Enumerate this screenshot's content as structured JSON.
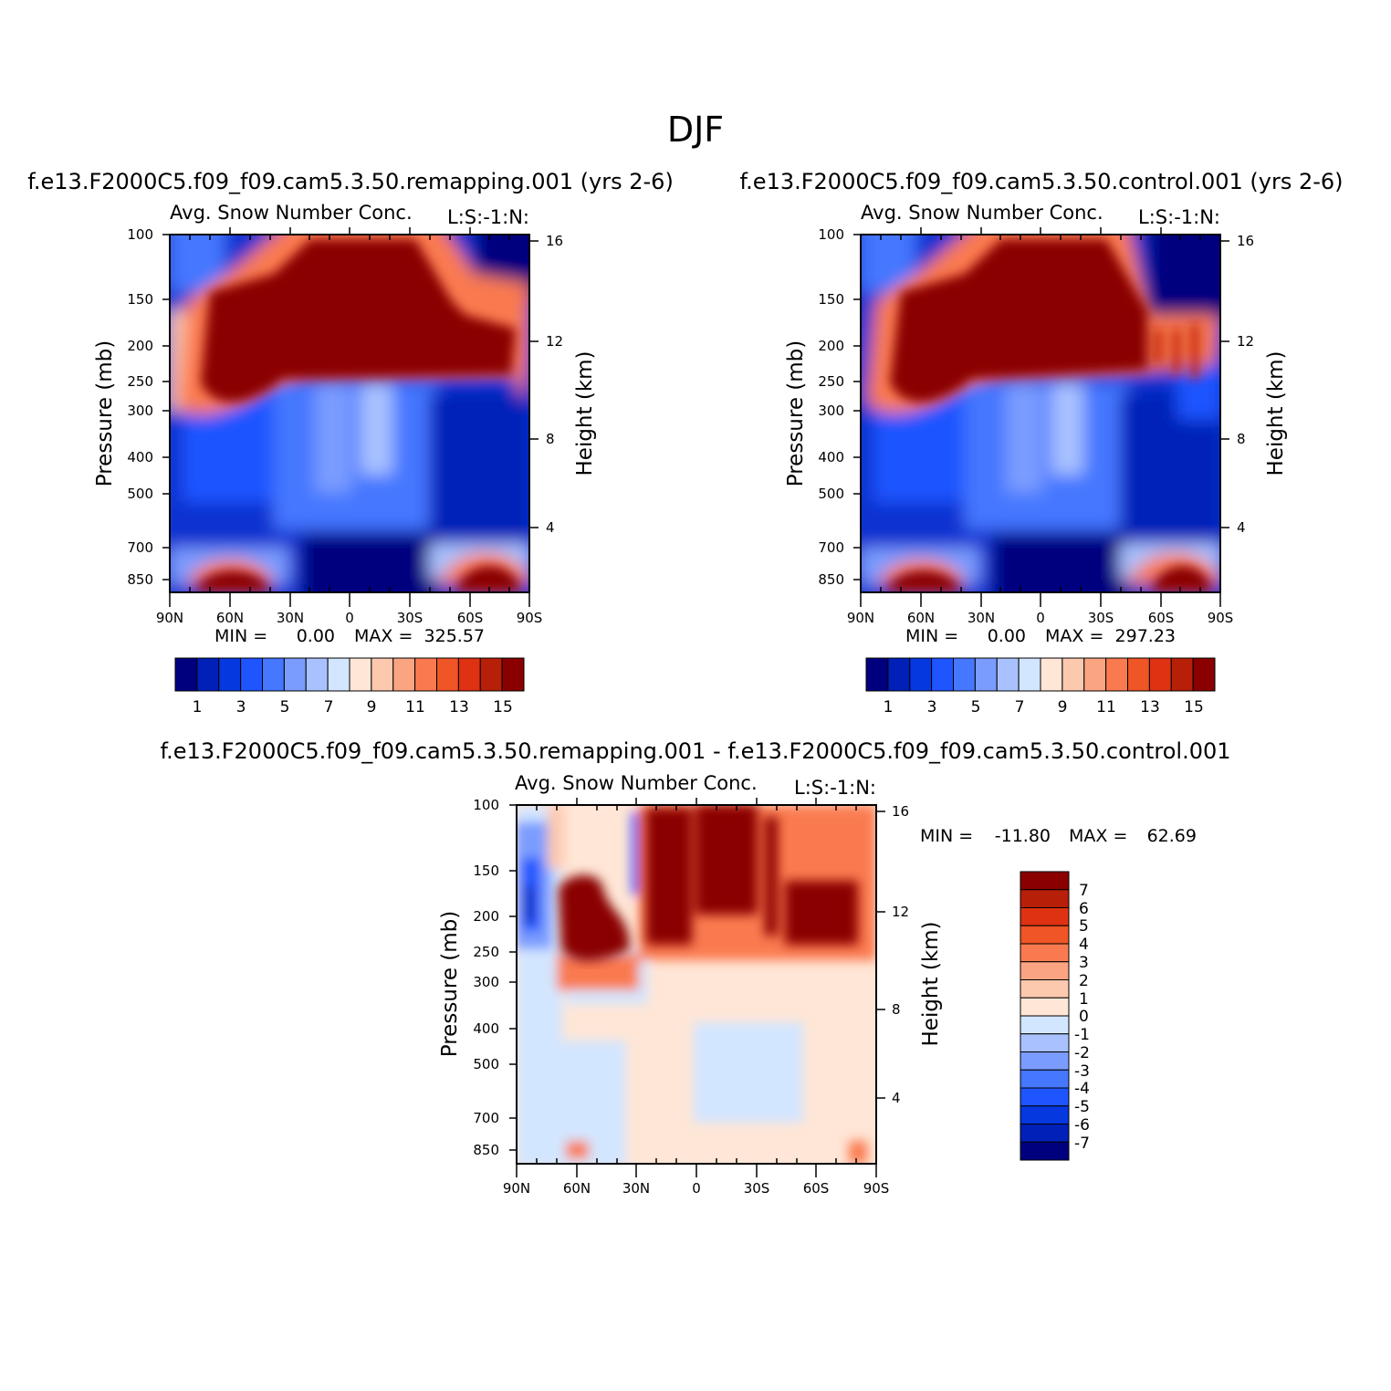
{
  "figure": {
    "title": "DJF",
    "colors": {
      "seq": [
        "#00007f",
        "#0020b8",
        "#0638e0",
        "#1e55ff",
        "#4577ff",
        "#7a9cff",
        "#a9c2ff",
        "#d3e6ff",
        "#ffe6d6",
        "#fdc9ae",
        "#fba482",
        "#fa7a50",
        "#ef5525",
        "#de3212",
        "#b81f08",
        "#8a0000"
      ],
      "div": [
        "#00007f",
        "#0020b8",
        "#0638e0",
        "#1e55ff",
        "#4577ff",
        "#7a9cff",
        "#a9c2ff",
        "#d3e6ff",
        "#ffe6d6",
        "#fdc9ae",
        "#fba482",
        "#fa7a50",
        "#ef5525",
        "#de3212",
        "#b81f08",
        "#8a0000"
      ]
    }
  },
  "chart_data": [
    {
      "type": "heatmap",
      "id": "remap",
      "title": "f.e13.F2000C5.f09_f09.cam5.3.50.remapping.001 (yrs 2-6)",
      "subtitle_left": "Avg. Snow Number Conc.",
      "subtitle_right": "L:S:-1:N:",
      "xlabel": "",
      "ylabel": "Pressure (mb)",
      "ylabel_right": "Height (km)",
      "x_ticks": [
        "90N",
        "60N",
        "30N",
        "0",
        "30S",
        "60S",
        "90S"
      ],
      "y_ticks": [
        "100",
        "150",
        "200",
        "250",
        "300",
        "400",
        "500",
        "700",
        "850"
      ],
      "y2_ticks": [
        "16",
        "12",
        "8",
        "4"
      ],
      "min_label": "MIN =",
      "min_value": "0.00",
      "max_label": "MAX =",
      "max_value": "325.57",
      "colorbar_labels": [
        "1",
        "3",
        "5",
        "7",
        "9",
        "11",
        "13",
        "15"
      ],
      "ylim": [
        100,
        925
      ]
    },
    {
      "type": "heatmap",
      "id": "control",
      "title": "f.e13.F2000C5.f09_f09.cam5.3.50.control.001 (yrs 2-6)",
      "subtitle_left": "Avg. Snow Number Conc.",
      "subtitle_right": "L:S:-1:N:",
      "xlabel": "",
      "ylabel": "Pressure (mb)",
      "ylabel_right": "Height (km)",
      "x_ticks": [
        "90N",
        "60N",
        "30N",
        "0",
        "30S",
        "60S",
        "90S"
      ],
      "y_ticks": [
        "100",
        "150",
        "200",
        "250",
        "300",
        "400",
        "500",
        "700",
        "850"
      ],
      "y2_ticks": [
        "16",
        "12",
        "8",
        "4"
      ],
      "min_label": "MIN =",
      "min_value": "0.00",
      "max_label": "MAX =",
      "max_value": "297.23",
      "colorbar_labels": [
        "1",
        "3",
        "5",
        "7",
        "9",
        "11",
        "13",
        "15"
      ],
      "ylim": [
        100,
        925
      ]
    },
    {
      "type": "heatmap",
      "id": "diff",
      "title": "f.e13.F2000C5.f09_f09.cam5.3.50.remapping.001 - f.e13.F2000C5.f09_f09.cam5.3.50.control.001",
      "subtitle_left": "Avg. Snow Number Conc.",
      "subtitle_right": "L:S:-1:N:",
      "xlabel": "",
      "ylabel": "Pressure (mb)",
      "ylabel_right": "Height (km)",
      "x_ticks": [
        "90N",
        "60N",
        "30N",
        "0",
        "30S",
        "60S",
        "90S"
      ],
      "y_ticks": [
        "100",
        "150",
        "200",
        "250",
        "300",
        "400",
        "500",
        "700",
        "850"
      ],
      "y2_ticks": [
        "16",
        "12",
        "8",
        "4"
      ],
      "min_label": "MIN =",
      "min_value": "-11.80",
      "max_label": "MAX =",
      "max_value": "62.69",
      "colorbar_labels": [
        "7",
        "6",
        "5",
        "4",
        "3",
        "2",
        "1",
        "0",
        "-1",
        "-2",
        "-3",
        "-4",
        "-5",
        "-6",
        "-7"
      ],
      "ylim": [
        100,
        925
      ]
    }
  ]
}
